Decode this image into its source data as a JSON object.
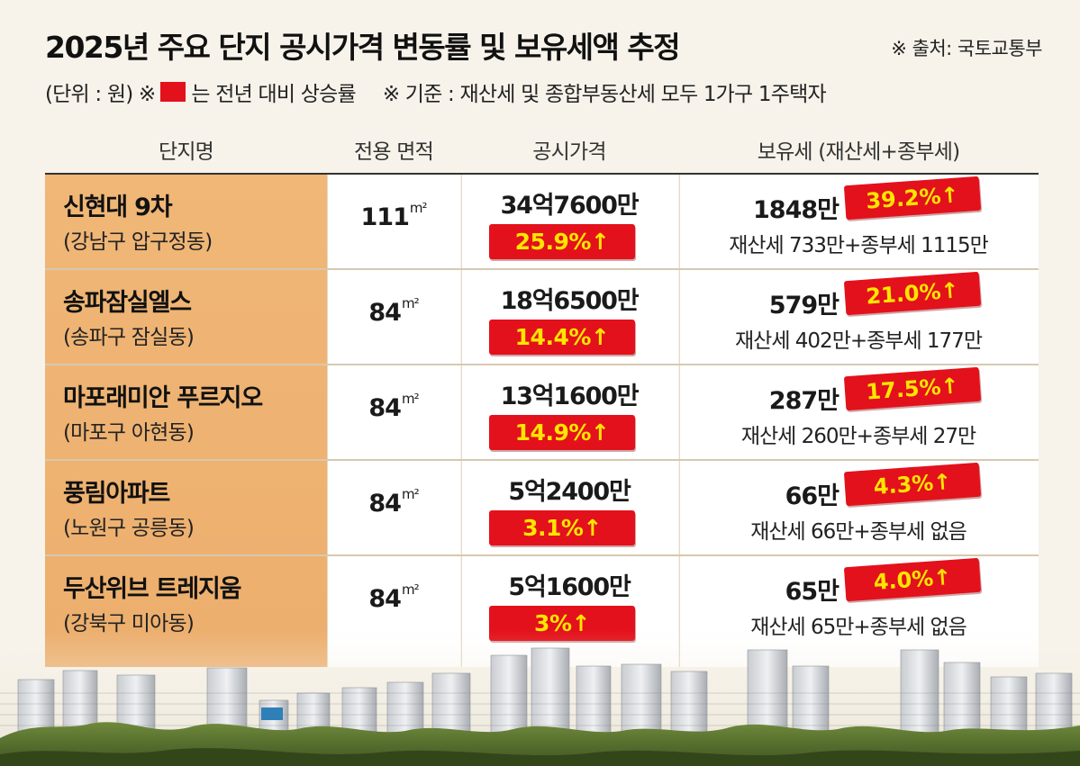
{
  "title": "2025년 주요 단지 공시가격 변동률 및 보유세액 추정",
  "source": "※ 출처: 국토교통부",
  "legend": {
    "unit": "(단위 : 원) ※",
    "swatch_text": "는 전년 대비 상승률",
    "basis": "※ 기준 :  재산세 및 종합부동산세 모두  1가구 1주택자",
    "swatch_color": "#e3111b"
  },
  "headers": [
    "단지명",
    "전용 면적",
    "공시가격",
    "보유세 (재산세+종부세)"
  ],
  "chart_data": {
    "type": "table",
    "columns": [
      "단지명",
      "전용 면적",
      "공시가격",
      "보유세 (재산세+종부세)"
    ],
    "rows": [
      {
        "name": "신현대 9차",
        "district": "(강남구 압구정동)",
        "area": "111",
        "area_unit": "m²",
        "price": "34억7600만",
        "price_change": "25.9%↑",
        "tax": "1848만",
        "tax_change": "39.2%↑",
        "tax_breakdown": "재산세 733만+종부세 1115만"
      },
      {
        "name": "송파잠실엘스",
        "district": "(송파구 잠실동)",
        "area": "84",
        "area_unit": "m²",
        "price": "18억6500만",
        "price_change": "14.4%↑",
        "tax": "579만",
        "tax_change": "21.0%↑",
        "tax_breakdown": "재산세 402만+종부세 177만"
      },
      {
        "name": "마포래미안 푸르지오",
        "district": "(마포구 아현동)",
        "area": "84",
        "area_unit": "m²",
        "price": "13억1600만",
        "price_change": "14.9%↑",
        "tax": "287만",
        "tax_change": "17.5%↑",
        "tax_breakdown": "재산세 260만+종부세 27만"
      },
      {
        "name": "풍림아파트",
        "district": "(노원구 공릉동)",
        "area": "84",
        "area_unit": "m²",
        "price": "5억2400만",
        "price_change": "3.1%↑",
        "tax": "66만",
        "tax_change": "4.3%↑",
        "tax_breakdown": "재산세 66만+종부세 없음"
      },
      {
        "name": "두산위브 트레지움",
        "district": "(강북구 미아동)",
        "area": "84",
        "area_unit": "m²",
        "price": "5억1600만",
        "price_change": "3%↑",
        "tax": "65만",
        "tax_change": "4.0%↑",
        "tax_breakdown": "재산세 65만+종부세 없음"
      }
    ]
  },
  "colors": {
    "accent_red": "#e3111b",
    "accent_yellow": "#ffe600",
    "name_column": "#eeb271",
    "background": "#f7f3ea"
  }
}
